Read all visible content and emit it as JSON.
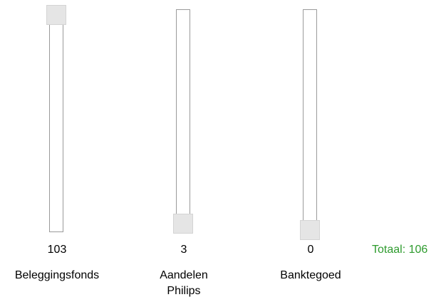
{
  "sliders": [
    {
      "value": "103",
      "label_line1": "Beleggingsfonds",
      "label_line2": "",
      "level": 1.0
    },
    {
      "value": "3",
      "label_line1": "Aandelen",
      "label_line2": "Philips",
      "level": 0.03
    },
    {
      "value": "0",
      "label_line1": "Banktegoed",
      "label_line2": "",
      "level": 0.0
    }
  ],
  "total": {
    "text": "Totaal: 106",
    "color": "#2e9b2e"
  }
}
